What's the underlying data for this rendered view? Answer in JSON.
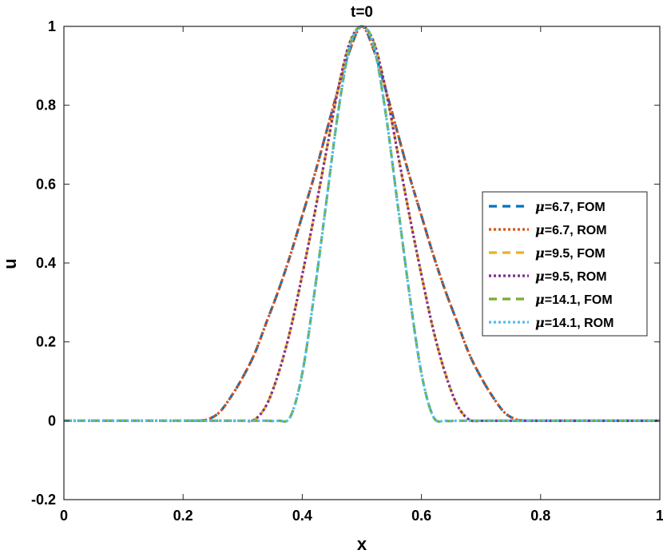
{
  "chart_data": {
    "type": "line",
    "title": "t=0",
    "xlabel": "x",
    "ylabel": "u",
    "xlim": [
      0,
      1
    ],
    "ylim": [
      -0.2,
      1
    ],
    "xticks": [
      "0",
      "0.2",
      "0.4",
      "0.6",
      "0.8",
      "1"
    ],
    "xtick_values": [
      0,
      0.2,
      0.4,
      0.6,
      0.8,
      1
    ],
    "yticks": [
      "-0.2",
      "0",
      "0.2",
      "0.4",
      "0.6",
      "0.8",
      "1"
    ],
    "ytick_values": [
      -0.2,
      0,
      0.2,
      0.4,
      0.6,
      0.8,
      1
    ],
    "grid": false,
    "legend_position": "right",
    "x": [
      0,
      0.2,
      0.22,
      0.24,
      0.26,
      0.28,
      0.3,
      0.32,
      0.34,
      0.36,
      0.38,
      0.4,
      0.42,
      0.44,
      0.46,
      0.48,
      0.5,
      0.52,
      0.54,
      0.56,
      0.58,
      0.6,
      0.62,
      0.64,
      0.66,
      0.68,
      0.7,
      0.72,
      0.74,
      0.76,
      0.78,
      0.8,
      1
    ],
    "series": [
      {
        "name": "=6.7, FOM",
        "mu": "μ",
        "color": "#0072BD",
        "dash": "10,7",
        "width": 3.2,
        "values": [
          0,
          0,
          0,
          0.003,
          0.02,
          0.06,
          0.11,
          0.17,
          0.25,
          0.33,
          0.42,
          0.52,
          0.62,
          0.73,
          0.84,
          0.94,
          1,
          0.94,
          0.84,
          0.73,
          0.62,
          0.52,
          0.42,
          0.33,
          0.25,
          0.17,
          0.11,
          0.06,
          0.02,
          0.003,
          0,
          0,
          0
        ]
      },
      {
        "name": "=6.7, ROM",
        "mu": "μ",
        "color": "#D95319",
        "dash": "3,3",
        "width": 3.2,
        "values": [
          0,
          0,
          0,
          0.003,
          0.02,
          0.06,
          0.11,
          0.17,
          0.25,
          0.33,
          0.42,
          0.52,
          0.62,
          0.73,
          0.84,
          0.94,
          1,
          0.94,
          0.84,
          0.73,
          0.62,
          0.52,
          0.42,
          0.33,
          0.25,
          0.17,
          0.11,
          0.06,
          0.02,
          0.003,
          0,
          0,
          0
        ]
      },
      {
        "name": "=9.5, FOM",
        "mu": "μ",
        "color": "#EDB120",
        "dash": "10,7",
        "width": 3.2,
        "values": [
          0,
          0,
          0,
          0,
          0,
          0,
          0,
          0.003,
          0.04,
          0.12,
          0.23,
          0.37,
          0.52,
          0.68,
          0.84,
          0.96,
          1,
          0.96,
          0.84,
          0.68,
          0.52,
          0.37,
          0.23,
          0.12,
          0.04,
          0.003,
          0,
          0,
          0,
          0,
          0,
          0,
          0
        ]
      },
      {
        "name": "=9.5, ROM",
        "mu": "μ",
        "color": "#7E2F8E",
        "dash": "3,3",
        "width": 3.2,
        "values": [
          0,
          0,
          0,
          0,
          0,
          0,
          0,
          0.003,
          0.04,
          0.12,
          0.23,
          0.37,
          0.52,
          0.68,
          0.84,
          0.96,
          1,
          0.96,
          0.84,
          0.68,
          0.52,
          0.37,
          0.23,
          0.12,
          0.04,
          0.003,
          0,
          0,
          0,
          0,
          0,
          0,
          0
        ]
      },
      {
        "name": "=14.1, FOM",
        "mu": "μ",
        "color": "#77AC30",
        "dash": "10,7",
        "width": 3.2,
        "values": [
          0,
          0,
          0,
          0,
          0,
          0,
          0,
          0,
          0,
          0,
          0.01,
          0.12,
          0.32,
          0.55,
          0.78,
          0.95,
          1,
          0.95,
          0.78,
          0.55,
          0.32,
          0.12,
          0.01,
          0,
          0,
          0,
          0,
          0,
          0,
          0,
          0,
          0,
          0
        ]
      },
      {
        "name": "=14.1, ROM",
        "mu": "μ",
        "color": "#4DBEEE",
        "dash": "3,3",
        "width": 3.2,
        "values": [
          0,
          0,
          0,
          0,
          0,
          0,
          0,
          0,
          0,
          0,
          0.01,
          0.12,
          0.32,
          0.55,
          0.78,
          0.95,
          1,
          0.95,
          0.78,
          0.55,
          0.32,
          0.12,
          0.01,
          0,
          0,
          0,
          0,
          0,
          0,
          0,
          0,
          0,
          0
        ]
      }
    ]
  }
}
